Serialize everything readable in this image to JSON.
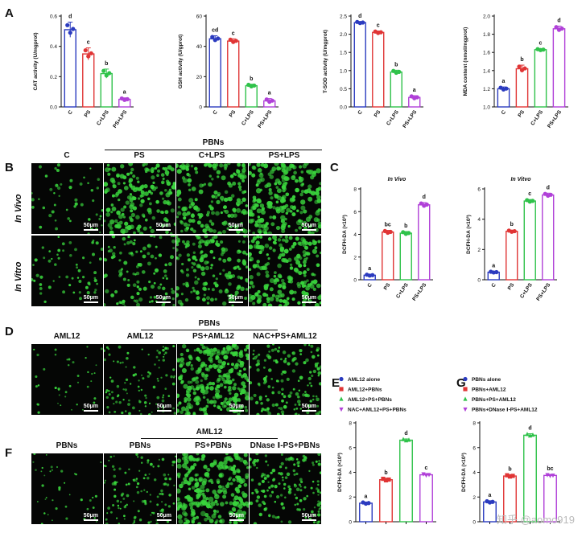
{
  "panels": {
    "A": "A",
    "B": "B",
    "C": "C",
    "D": "D",
    "E": "E",
    "F": "F",
    "G": "G"
  },
  "colors": {
    "blue": "#2b3bbf",
    "red": "#e03535",
    "green": "#2fc24a",
    "purple": "#b040d8",
    "cell": "#39d33c"
  },
  "headers": {
    "b_group": "PBNs",
    "b_cols": [
      "C",
      "PS",
      "C+LPS",
      "PS+LPS"
    ],
    "b_rows": [
      "In Vivo",
      "In Vitro"
    ],
    "d_group": "PBNs",
    "d_cols": [
      "AML12",
      "AML12",
      "PS+AML12",
      "NAC+PS+AML12"
    ],
    "f_group": "AML12",
    "f_cols": [
      "PBNs",
      "PBNs",
      "PS+PBNs",
      "DNase Ⅰ-PS+PBNs"
    ],
    "scale_label": "50μm"
  },
  "chart_data": [
    {
      "id": "A1",
      "type": "bar",
      "ylabel": "CAT activity (U/mgprot)",
      "categories": [
        "C",
        "PS",
        "C+LPS",
        "PS+LPS"
      ],
      "values": [
        0.51,
        0.35,
        0.22,
        0.05
      ],
      "errors": [
        0.05,
        0.04,
        0.03,
        0.01
      ],
      "letters": [
        "d",
        "c",
        "b",
        "a"
      ],
      "ylim": [
        0,
        0.6
      ],
      "ticks": [
        "0.0",
        "0.2",
        "0.4",
        "0.6"
      ],
      "tickvals": [
        0,
        0.2,
        0.4,
        0.6
      ]
    },
    {
      "id": "A2",
      "type": "bar",
      "ylabel": "GSH activity (U/gprot)",
      "categories": [
        "C",
        "PS",
        "C+LPS",
        "PS+LPS"
      ],
      "values": [
        45,
        43.5,
        14,
        4
      ],
      "errors": [
        2,
        1.5,
        1,
        1.5
      ],
      "letters": [
        "cd",
        "c",
        "b",
        "a"
      ],
      "ylim": [
        0,
        60
      ],
      "ticks": [
        "0",
        "20",
        "40",
        "60"
      ],
      "tickvals": [
        0,
        20,
        40,
        60
      ]
    },
    {
      "id": "A3",
      "type": "bar",
      "ylabel": "T-SOD activity (U/mgprot)",
      "categories": [
        "C",
        "PS",
        "C+LPS",
        "PS+LPS"
      ],
      "values": [
        2.32,
        2.05,
        0.96,
        0.26
      ],
      "errors": [
        0.03,
        0.04,
        0.05,
        0.05
      ],
      "letters": [
        "d",
        "c",
        "b",
        "a"
      ],
      "ylim": [
        0,
        2.5
      ],
      "ticks": [
        "0.0",
        "0.5",
        "1.0",
        "1.5",
        "2.0",
        "2.5"
      ],
      "tickvals": [
        0,
        0.5,
        1,
        1.5,
        2,
        2.5
      ]
    },
    {
      "id": "A4",
      "type": "bar",
      "ylabel": "MDA content (nmol/mgprot)",
      "categories": [
        "C",
        "PS",
        "C+LPS",
        "PS+LPS"
      ],
      "values": [
        1.2,
        1.42,
        1.63,
        1.86
      ],
      "errors": [
        0.02,
        0.04,
        0.01,
        0.03
      ],
      "letters": [
        "a",
        "b",
        "c",
        "d"
      ],
      "ylim": [
        1.0,
        2.0
      ],
      "ticks": [
        "1.0",
        "1.2",
        "1.4",
        "1.6",
        "1.8",
        "2.0"
      ],
      "tickvals": [
        1,
        1.2,
        1.4,
        1.6,
        1.8,
        2.0
      ]
    },
    {
      "id": "C1",
      "type": "bar",
      "title": "In Vivo",
      "ylabel": "DCFH-DA (×10³)",
      "categories": [
        "C",
        "PS",
        "C+LPS",
        "PS+LPS"
      ],
      "values": [
        0.4,
        4.2,
        4.1,
        6.6
      ],
      "errors": [
        0.08,
        0.15,
        0.15,
        0.2
      ],
      "letters": [
        "a",
        "bc",
        "b",
        "d"
      ],
      "ylim": [
        0,
        8
      ],
      "ticks": [
        "0",
        "2",
        "4",
        "6",
        "8"
      ],
      "tickvals": [
        0,
        2,
        4,
        6,
        8
      ]
    },
    {
      "id": "C2",
      "type": "bar",
      "title": "In Vitvo",
      "ylabel": "DCFH-DA (×10³)",
      "categories": [
        "C",
        "PS",
        "C+LPS",
        "PS+LPS"
      ],
      "values": [
        0.5,
        3.2,
        5.2,
        5.6
      ],
      "errors": [
        0.05,
        0.08,
        0.1,
        0.12
      ],
      "letters": [
        "a",
        "b",
        "c",
        "d"
      ],
      "ylim": [
        0,
        6
      ],
      "ticks": [
        "0",
        "2",
        "4",
        "6"
      ],
      "tickvals": [
        0,
        2,
        4,
        6
      ]
    },
    {
      "id": "E",
      "type": "bar",
      "ylabel": "DCFH-DA (×10³)",
      "legend": [
        "AML12 alone",
        "AML12+PBNs",
        "AML12+PS+PBNs",
        "NAC+AML12+PS+PBNs"
      ],
      "values": [
        1.5,
        3.4,
        6.6,
        3.8
      ],
      "errors": [
        0.1,
        0.12,
        0.1,
        0.1
      ],
      "letters": [
        "a",
        "b",
        "d",
        "c"
      ],
      "ylim": [
        0,
        8
      ],
      "ticks": [
        "0",
        "2",
        "4",
        "6",
        "8"
      ],
      "tickvals": [
        0,
        2,
        4,
        6,
        8
      ]
    },
    {
      "id": "G",
      "type": "bar",
      "ylabel": "DCFH-DA (×10³)",
      "legend": [
        "PBNs alone",
        "PBNs+AML12",
        "PBNs+PS+AML12",
        "PBNs+DNase Ⅰ-PS+AML12"
      ],
      "values": [
        1.6,
        3.7,
        7.0,
        3.75
      ],
      "errors": [
        0.1,
        0.1,
        0.12,
        0.08
      ],
      "letters": [
        "a",
        "b",
        "d",
        "bc"
      ],
      "ylim": [
        0,
        8
      ],
      "ticks": [
        "0",
        "2",
        "4",
        "6",
        "8"
      ],
      "tickvals": [
        0,
        2,
        4,
        6,
        8
      ]
    }
  ],
  "watermark": "知乎 @aomo919"
}
